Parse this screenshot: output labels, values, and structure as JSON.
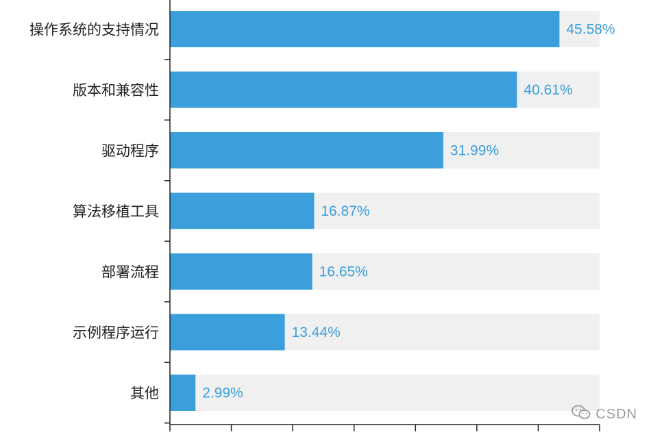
{
  "chart_data": {
    "type": "bar",
    "orientation": "horizontal",
    "categories": [
      "操作系统的支持情况",
      "版本和兼容性",
      "驱动程序",
      "算法移植工具",
      "部署流程",
      "示例程序运行",
      "其他"
    ],
    "values": [
      45.58,
      40.61,
      31.99,
      16.87,
      16.65,
      13.44,
      2.99
    ],
    "value_labels": [
      "45.58%",
      "40.61%",
      "31.99%",
      "16.87%",
      "16.65%",
      "13.44%",
      "2.99%"
    ],
    "xlim": [
      0,
      70
    ],
    "bar_color": "#3a9fdb",
    "track_color": "#f0f0f0",
    "value_label_color": "#3a9fdb",
    "grid": false
  },
  "watermark": {
    "icon": "wechat-icon",
    "text": "CSDN"
  }
}
